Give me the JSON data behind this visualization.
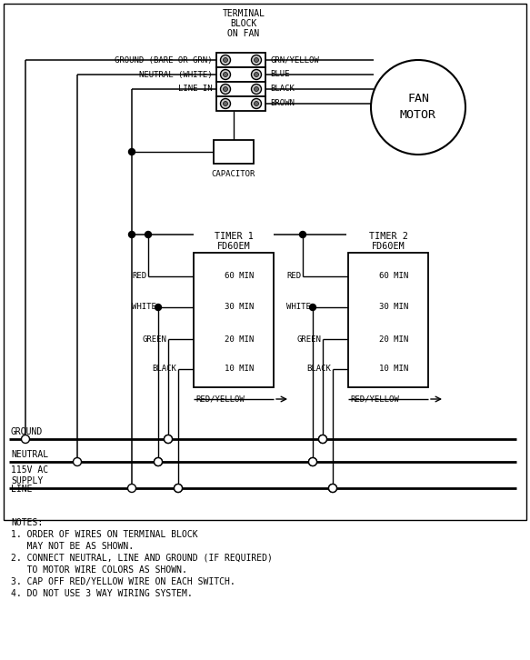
{
  "bg_color": "#ffffff",
  "lc": "#000000",
  "fs": 7.0,
  "figw": 5.83,
  "figh": 7.26,
  "dpi": 100,
  "notes": [
    "NOTES:",
    "1. ORDER OF WIRES ON TERMINAL BLOCK",
    "   MAY NOT BE AS SHOWN.",
    "2. CONNECT NEUTRAL, LINE AND GROUND (IF REQUIRED)",
    "   TO MOTOR WIRE COLORS AS SHOWN.",
    "3. CAP OFF RED/YELLOW WIRE ON EACH SWITCH.",
    "4. DO NOT USE 3 WAY WIRING SYSTEM."
  ],
  "tb_label": [
    "TERMINAL",
    "BLOCK",
    "ON FAN"
  ],
  "fan_label": [
    "FAN",
    "MOTOR"
  ],
  "cap_label": "CAPACITOR",
  "right_labels": [
    "GRN/YELLOW",
    "BLUE",
    "BLACK",
    "BROWN"
  ],
  "left_labels": [
    "GROUND (BARE OR GRN)",
    "NEUTRAL (WHITE)",
    "LINE IN"
  ],
  "timer1_label": [
    "TIMER 1",
    "FD60EM"
  ],
  "timer2_label": [
    "TIMER 2",
    "FD60EM"
  ],
  "tap_labels": [
    "60 MIN",
    "30 MIN",
    "20 MIN",
    "10 MIN"
  ],
  "wire_labels": [
    "RED",
    "WHITE",
    "GREEN",
    "BLACK"
  ],
  "ry_label": "RED/YELLOW",
  "bus_labels": [
    "GROUND",
    "NEUTRAL",
    "LINE"
  ],
  "supply_label": [
    "115V AC",
    "SUPPLY"
  ]
}
